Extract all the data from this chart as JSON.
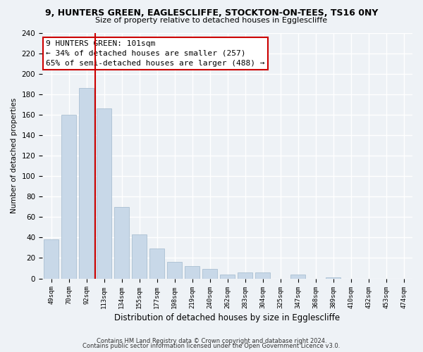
{
  "title1": "9, HUNTERS GREEN, EAGLESCLIFFE, STOCKTON-ON-TEES, TS16 0NY",
  "title2": "Size of property relative to detached houses in Egglescliffe",
  "xlabel": "Distribution of detached houses by size in Egglescliffe",
  "ylabel": "Number of detached properties",
  "bar_labels": [
    "49sqm",
    "70sqm",
    "92sqm",
    "113sqm",
    "134sqm",
    "155sqm",
    "177sqm",
    "198sqm",
    "219sqm",
    "240sqm",
    "262sqm",
    "283sqm",
    "304sqm",
    "325sqm",
    "347sqm",
    "368sqm",
    "389sqm",
    "410sqm",
    "432sqm",
    "453sqm",
    "474sqm"
  ],
  "bar_values": [
    38,
    160,
    186,
    166,
    70,
    43,
    29,
    16,
    12,
    9,
    4,
    6,
    6,
    0,
    4,
    0,
    1,
    0,
    0,
    0,
    0
  ],
  "bar_color": "#c8d8e8",
  "bar_edge_color": "#a0b8cc",
  "vline_x": 2.5,
  "vline_color": "#cc0000",
  "annotation_title": "9 HUNTERS GREEN: 101sqm",
  "annotation_line1": "← 34% of detached houses are smaller (257)",
  "annotation_line2": "65% of semi-detached houses are larger (488) →",
  "annotation_box_color": "#ffffff",
  "annotation_box_edge": "#cc0000",
  "ylim": [
    0,
    240
  ],
  "yticks": [
    0,
    20,
    40,
    60,
    80,
    100,
    120,
    140,
    160,
    180,
    200,
    220,
    240
  ],
  "footnote1": "Contains HM Land Registry data © Crown copyright and database right 2024.",
  "footnote2": "Contains public sector information licensed under the Open Government Licence v3.0.",
  "bg_color": "#eef2f6"
}
